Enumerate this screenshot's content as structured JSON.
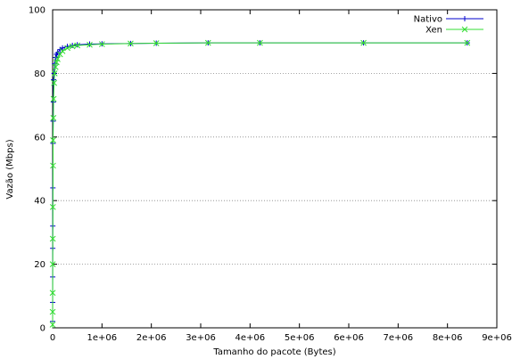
{
  "chart_data": {
    "type": "line",
    "title": "",
    "xlabel": "Tamanho do pacote (Bytes)",
    "ylabel": "Vazão (Mbps)",
    "xlim": [
      0,
      9000000
    ],
    "ylim": [
      0,
      100
    ],
    "x_ticks": [
      0,
      1000000,
      2000000,
      3000000,
      4000000,
      5000000,
      6000000,
      7000000,
      8000000,
      9000000
    ],
    "x_tick_labels": [
      "0",
      "1e+06",
      "2e+06",
      "3e+06",
      "4e+06",
      "5e+06",
      "6e+06",
      "7e+06",
      "8e+06",
      "9e+06"
    ],
    "y_ticks": [
      0,
      20,
      40,
      60,
      80,
      100
    ],
    "y_tick_labels": [
      "0",
      "20",
      "40",
      "60",
      "80",
      "100"
    ],
    "grid": true,
    "legend_position": "top-right",
    "series": [
      {
        "name": "Nativo",
        "color": "#0000cc",
        "marker": "plus",
        "x": [
          100,
          500,
          1000,
          2000,
          3000,
          5000,
          8000,
          10000,
          15000,
          20000,
          30000,
          40000,
          60000,
          80000,
          100000,
          150000,
          200000,
          300000,
          400000,
          500000,
          750000,
          1000000,
          1580000,
          2100000,
          3150000,
          4200000,
          6300000,
          8400000
        ],
        "values": [
          2,
          8,
          16,
          25,
          32,
          44,
          58,
          65,
          71,
          78,
          80,
          83,
          85,
          86,
          86.5,
          87.5,
          88,
          88.5,
          88.8,
          89,
          89.2,
          89.3,
          89.4,
          89.5,
          89.6,
          89.6,
          89.6,
          89.6
        ]
      },
      {
        "name": "Xen",
        "color": "#33dd33",
        "marker": "cross",
        "x": [
          100,
          500,
          1000,
          2000,
          3000,
          5000,
          8000,
          10000,
          15000,
          20000,
          30000,
          40000,
          60000,
          80000,
          100000,
          150000,
          200000,
          300000,
          400000,
          500000,
          750000,
          1000000,
          1580000,
          2100000,
          3150000,
          4200000,
          6300000,
          8400000
        ],
        "values": [
          1,
          5,
          11,
          20,
          28,
          38,
          51,
          59,
          66,
          72,
          77,
          80,
          82,
          83.5,
          84.5,
          86,
          87,
          88,
          88.5,
          88.8,
          89,
          89.2,
          89.4,
          89.5,
          89.6,
          89.6,
          89.6,
          89.6
        ]
      }
    ]
  }
}
